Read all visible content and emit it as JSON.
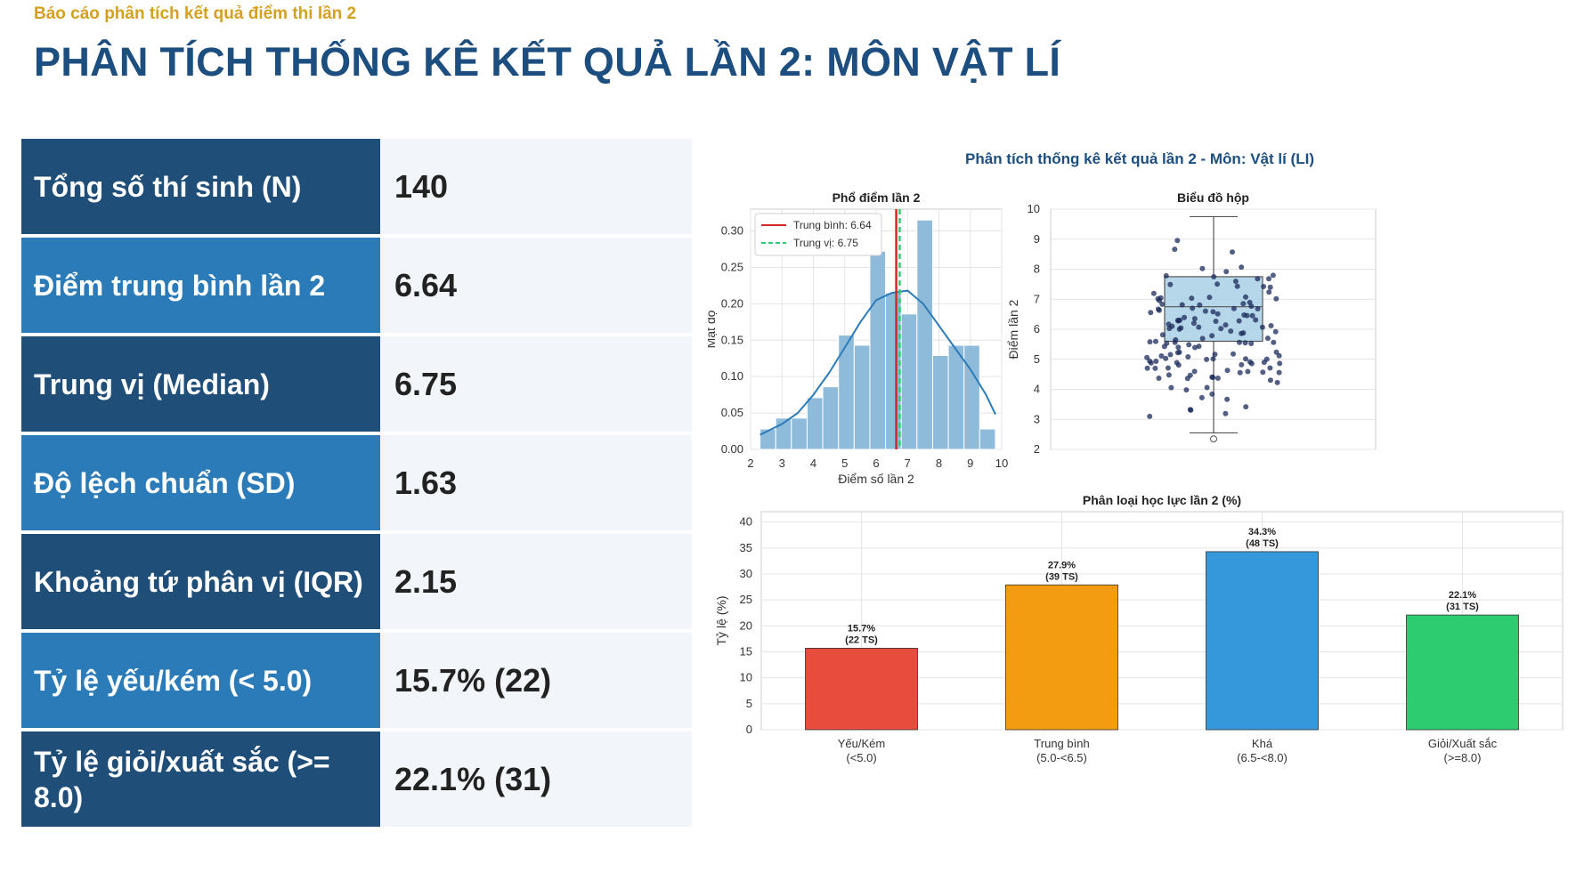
{
  "header": {
    "subtitle": "Báo cáo phân tích kết quả điểm thi lần 2",
    "title": "PHÂN TÍCH THỐNG KÊ KẾT QUẢ LẦN 2: MÔN VẬT LÍ"
  },
  "stats": [
    {
      "label": "Tổng số thí sinh (N)",
      "value": "140"
    },
    {
      "label": "Điểm trung bình lần 2",
      "value": "6.64"
    },
    {
      "label": "Trung vị (Median)",
      "value": "6.75"
    },
    {
      "label": "Độ lệch chuẩn (SD)",
      "value": "1.63"
    },
    {
      "label": "Khoảng tứ phân vị (IQR)",
      "value": "2.15"
    },
    {
      "label": "Tỷ lệ yếu/kém (< 5.0)",
      "value": "15.7% (22)"
    },
    {
      "label": "Tỷ lệ giỏi/xuất sắc (>= 8.0)",
      "value": "22.1% (31)"
    }
  ],
  "colors": {
    "dark_row": "#1f4e79",
    "light_row": "#2b7bb9",
    "title": "#1d4e80",
    "subtitle": "#d4a020",
    "mean_line": "#d62728",
    "median_line": "#2ecc71",
    "hist_bar": "#8fbbdb",
    "kde": "#2b7bb9"
  },
  "figure_title": "Phân tích thống kê kết quả lần 2 - Môn: Vật lí (LI)",
  "chart_data": [
    {
      "type": "bar",
      "subtype": "histogram",
      "title": "Phổ điểm lần 2",
      "xlabel": "Điểm số lần 2",
      "ylabel": "Mật độ",
      "xlim": [
        2,
        10
      ],
      "ylim": [
        0,
        0.33
      ],
      "xticks": [
        2,
        3,
        4,
        5,
        6,
        7,
        8,
        9,
        10
      ],
      "yticks": [
        0.0,
        0.05,
        0.1,
        0.15,
        0.2,
        0.25,
        0.3
      ],
      "bin_edges": [
        2.3,
        2.8,
        3.3,
        3.8,
        4.3,
        4.8,
        5.3,
        5.8,
        6.3,
        6.8,
        7.3,
        7.8,
        8.3,
        8.8,
        9.3,
        9.8
      ],
      "densities": [
        0.028,
        0.043,
        0.043,
        0.071,
        0.086,
        0.157,
        0.143,
        0.272,
        0.215,
        0.186,
        0.315,
        0.129,
        0.143,
        0.143,
        0.028
      ],
      "kde": [
        [
          2.3,
          0.02
        ],
        [
          3.0,
          0.035
        ],
        [
          3.5,
          0.05
        ],
        [
          4.0,
          0.075
        ],
        [
          4.5,
          0.105
        ],
        [
          5.0,
          0.14
        ],
        [
          5.5,
          0.175
        ],
        [
          6.0,
          0.205
        ],
        [
          6.5,
          0.215
        ],
        [
          7.0,
          0.218
        ],
        [
          7.5,
          0.2
        ],
        [
          8.0,
          0.17
        ],
        [
          8.5,
          0.14
        ],
        [
          9.0,
          0.11
        ],
        [
          9.5,
          0.075
        ],
        [
          9.8,
          0.048
        ]
      ],
      "mean": 6.64,
      "median": 6.75,
      "legend": [
        "Trung bình: 6.64",
        "Trung vị: 6.75"
      ],
      "legend_position": "top-left",
      "grid": true
    },
    {
      "type": "scatter",
      "subtype": "box",
      "title": "Biểu đồ hộp",
      "ylabel": "Điểm lần 2",
      "ylim": [
        2,
        10
      ],
      "yticks": [
        2,
        3,
        4,
        5,
        6,
        7,
        8,
        9,
        10
      ],
      "q1": 5.6,
      "median": 6.75,
      "q3": 7.75,
      "whisker_low": 2.55,
      "whisker_high": 9.75,
      "outliers": [
        2.35
      ],
      "grid": true
    },
    {
      "type": "bar",
      "title": "Phân loại học lực lần 2 (%)",
      "ylabel": "Tỷ lệ (%)",
      "ylim": [
        0,
        42
      ],
      "yticks": [
        0,
        5,
        10,
        15,
        20,
        25,
        30,
        35,
        40
      ],
      "categories": [
        {
          "line1": "Yếu/Kém",
          "line2": "(<5.0)"
        },
        {
          "line1": "Trung bình",
          "line2": "(5.0-<6.5)"
        },
        {
          "line1": "Khá",
          "line2": "(6.5-<8.0)"
        },
        {
          "line1": "Giỏi/Xuất sắc",
          "line2": "(>=8.0)"
        }
      ],
      "values": [
        15.7,
        27.9,
        34.3,
        22.1
      ],
      "labels": [
        {
          "pct": "15.7%",
          "count": "(22 TS)"
        },
        {
          "pct": "27.9%",
          "count": "(39 TS)"
        },
        {
          "pct": "34.3%",
          "count": "(48 TS)"
        },
        {
          "pct": "22.1%",
          "count": "(31 TS)"
        }
      ],
      "colors": [
        "#e74c3c",
        "#f39c12",
        "#3498db",
        "#2ecc71"
      ],
      "grid": true
    }
  ]
}
